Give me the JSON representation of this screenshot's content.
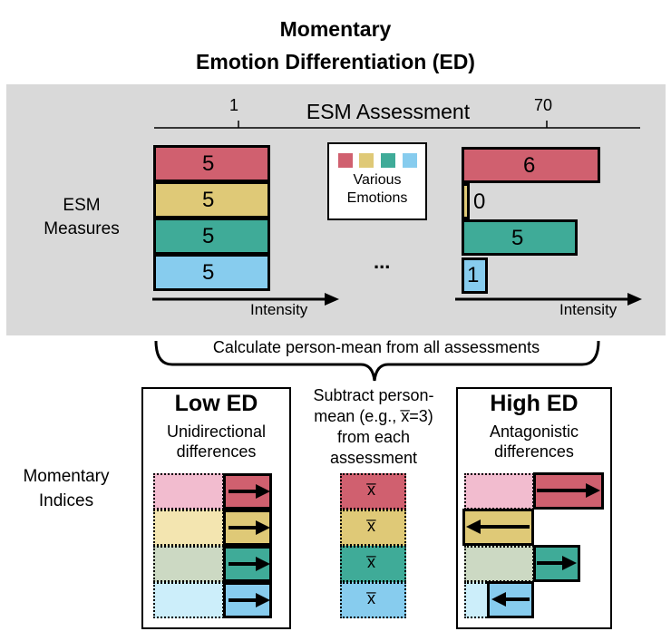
{
  "title": {
    "line1": "Momentary",
    "line2": "Emotion Differentiation (ED)"
  },
  "colors": {
    "red": "#d0606f",
    "yellow": "#dfc977",
    "teal": "#3fab98",
    "blue": "#87ccee",
    "panel": "#d9d9d9",
    "red_pale": "#f2bccf",
    "yellow_pale": "#f3e5b0",
    "teal_pale": "#ccd9c3",
    "blue_pale": "#cceefa"
  },
  "top": {
    "esm_measures_label": "ESM\nMeasures",
    "assessment_label": "ESM Assessment",
    "tick_first": "1",
    "tick_last": "70",
    "ellipsis": "...",
    "intensity_label": "Intensity",
    "legend_label": "Various\nEmotions",
    "first_assessment_values": [
      "5",
      "5",
      "5",
      "5"
    ],
    "last_assessment_values": [
      "6",
      "0",
      "5",
      "1"
    ]
  },
  "brace_label": "Calculate person-mean from all assessments",
  "subtract_text": "Subtract person-\nmean (e.g., x̅=3)\nfrom each\nassessment",
  "mean_symbol": "x̅",
  "momentary_indices_label": "Momentary\nIndices",
  "low_ed": {
    "title": "Low ED",
    "subtitle": "Unidirectional\ndifferences"
  },
  "high_ed": {
    "title": "High ED",
    "subtitle": "Antagonistic\ndifferences"
  }
}
